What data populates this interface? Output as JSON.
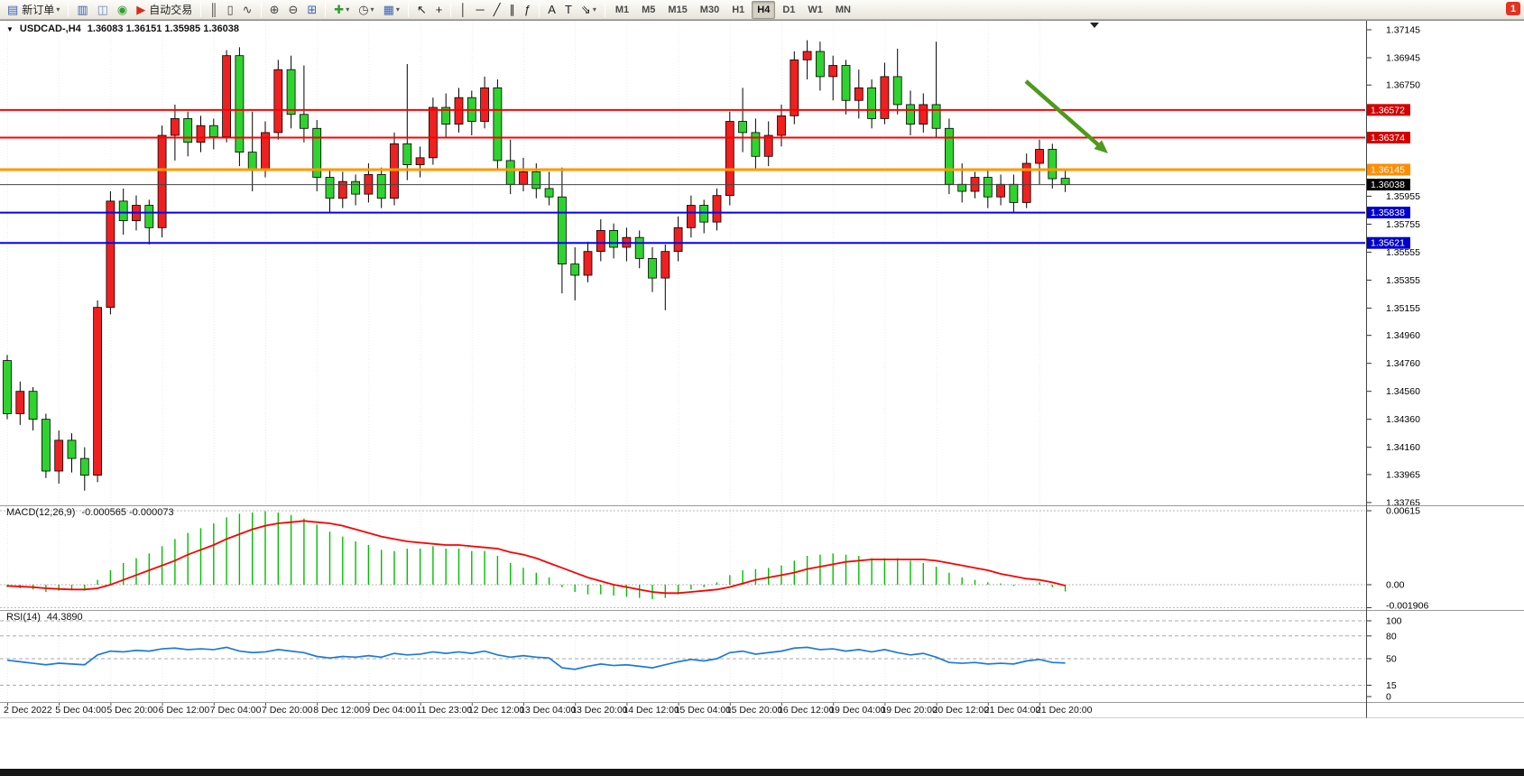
{
  "window": {
    "badge": "1"
  },
  "toolbar": {
    "caret_glyph": "▾",
    "buttons": [
      {
        "name": "new-order-button",
        "glyph": "▤",
        "color": "#3a63b8",
        "label": "新订单",
        "caret": true
      },
      {
        "name": "sep"
      },
      {
        "name": "charts-button",
        "glyph": "▥",
        "color": "#3a63b8"
      },
      {
        "name": "profiles-button",
        "glyph": "◫",
        "color": "#6b8cc8"
      },
      {
        "name": "data-window-button",
        "glyph": "◉",
        "color": "#2f9e2f"
      },
      {
        "name": "autotrading-button",
        "glyph": "▶",
        "color": "#d03020",
        "label": "自动交易"
      },
      {
        "name": "sep"
      },
      {
        "name": "bar-chart-button",
        "glyph": "║",
        "color": "#444"
      },
      {
        "name": "candle-chart-button",
        "glyph": "▯",
        "color": "#444"
      },
      {
        "name": "line-chart-button",
        "glyph": "∿",
        "color": "#444"
      },
      {
        "name": "sep"
      },
      {
        "name": "zoom-in-button",
        "glyph": "⊕",
        "color": "#444"
      },
      {
        "name": "zoom-out-button",
        "glyph": "⊖",
        "color": "#444"
      },
      {
        "name": "tile-windows-button",
        "glyph": "⊞",
        "color": "#3a63b8"
      },
      {
        "name": "sep"
      },
      {
        "name": "indicators-button",
        "glyph": "✚",
        "color": "#2f9e2f",
        "caret": true
      },
      {
        "name": "periods-button",
        "glyph": "◷",
        "color": "#444",
        "caret": true
      },
      {
        "name": "templates-button",
        "glyph": "▦",
        "color": "#3a63b8",
        "caret": true
      },
      {
        "name": "sep"
      },
      {
        "name": "cursor-button",
        "glyph": "↖",
        "color": "#222"
      },
      {
        "name": "crosshair-button",
        "glyph": "+",
        "color": "#222"
      },
      {
        "name": "sep"
      },
      {
        "name": "vline-button",
        "glyph": "│",
        "color": "#222"
      },
      {
        "name": "hline-button",
        "glyph": "─",
        "color": "#222"
      },
      {
        "name": "trendline-button",
        "glyph": "╱",
        "color": "#222"
      },
      {
        "name": "channel-button",
        "glyph": "∥",
        "color": "#222"
      },
      {
        "name": "fibonacci-button",
        "glyph": "ƒ",
        "color": "#222"
      },
      {
        "name": "sep"
      },
      {
        "name": "text-button",
        "glyph": "A",
        "color": "#222"
      },
      {
        "name": "label-button",
        "glyph": "T",
        "color": "#222"
      },
      {
        "name": "arrows-button",
        "glyph": "⇘",
        "color": "#222",
        "caret": true
      },
      {
        "name": "sep"
      }
    ],
    "timeframes": [
      "M1",
      "M5",
      "M15",
      "M30",
      "H1",
      "H4",
      "D1",
      "W1",
      "MN"
    ],
    "active_timeframe": "H4"
  },
  "chart": {
    "icons": {
      "dropdown": "▼"
    },
    "title": "USDCAD-,H4",
    "ohlc_display": "1.36083 1.36151 1.35985 1.36038",
    "axis_prices_plain": [
      "1.37145",
      "1.36945",
      "1.36750",
      "1.35955",
      "1.35755",
      "1.35555",
      "1.35355",
      "1.35155",
      "1.34960",
      "1.34760",
      "1.34560",
      "1.34360",
      "1.34160",
      "1.33965",
      "1.33765"
    ],
    "price_boxes": [
      {
        "label": "1.36572",
        "color": "#d40000"
      },
      {
        "label": "1.36374",
        "color": "#d40000"
      },
      {
        "label": "1.36145",
        "color": "#ff8c00"
      },
      {
        "label": "1.36038",
        "color": "#000000"
      },
      {
        "label": "1.35838",
        "color": "#0000cd"
      },
      {
        "label": "1.35621",
        "color": "#0000cd"
      }
    ],
    "hlines": [
      {
        "price": 1.36572,
        "color": "#ff0000",
        "width": 2
      },
      {
        "price": 1.36374,
        "color": "#ff0000",
        "width": 2
      },
      {
        "price": 1.36145,
        "color": "#ff9900",
        "width": 3
      },
      {
        "price": 1.36038,
        "color": "#444444",
        "width": 1
      },
      {
        "price": 1.35838,
        "color": "#0000ff",
        "width": 2
      },
      {
        "price": 1.35621,
        "color": "#0000ff",
        "width": 2
      }
    ],
    "time_labels": [
      "2 Dec 2022",
      "5 Dec 04:00",
      "5 Dec 20:00",
      "6 Dec 12:00",
      "7 Dec 04:00",
      "7 Dec 20:00",
      "8 Dec 12:00",
      "9 Dec 04:00",
      "11 Dec 23:00",
      "12 Dec 12:00",
      "13 Dec 04:00",
      "13 Dec 20:00",
      "14 Dec 12:00",
      "15 Dec 04:00",
      "15 Dec 20:00",
      "16 Dec 12:00",
      "19 Dec 04:00",
      "19 Dec 20:00",
      "20 Dec 12:00",
      "21 Dec 04:00",
      "21 Dec 20:00"
    ]
  },
  "macd": {
    "label": "MACD(12,26,9)",
    "values_display": "-0.000565 -0.000073",
    "axis": [
      "0.00615",
      "0.00",
      "-0.001906"
    ]
  },
  "rsi": {
    "label": "RSI(14)",
    "value_display": "44.3890",
    "axis": [
      "100",
      "80",
      "50",
      "15",
      "0"
    ],
    "levels": [
      100,
      80,
      50,
      15
    ]
  },
  "chart_data": {
    "type": "candlestick",
    "symbol": "USDCAD",
    "timeframe": "H4",
    "bull_color": "#ef2020",
    "bear_color": "#2fd32f",
    "candles": [
      [
        1.3478,
        1.3482,
        1.3436,
        1.344
      ],
      [
        1.344,
        1.3463,
        1.3432,
        1.3456
      ],
      [
        1.3456,
        1.3459,
        1.3428,
        1.3436
      ],
      [
        1.3436,
        1.344,
        1.3394,
        1.3399
      ],
      [
        1.3399,
        1.3428,
        1.339,
        1.3421
      ],
      [
        1.3421,
        1.3426,
        1.3398,
        1.3408
      ],
      [
        1.3408,
        1.3416,
        1.3385,
        1.3396
      ],
      [
        1.3396,
        1.3521,
        1.3391,
        1.3516
      ],
      [
        1.3516,
        1.3599,
        1.3511,
        1.3592
      ],
      [
        1.3592,
        1.3601,
        1.3568,
        1.3578
      ],
      [
        1.3578,
        1.3596,
        1.3571,
        1.3589
      ],
      [
        1.3589,
        1.3593,
        1.3561,
        1.3573
      ],
      [
        1.3573,
        1.3646,
        1.3566,
        1.3639
      ],
      [
        1.3639,
        1.3661,
        1.3621,
        1.3651
      ],
      [
        1.3651,
        1.3656,
        1.3624,
        1.3634
      ],
      [
        1.3634,
        1.3653,
        1.3627,
        1.3646
      ],
      [
        1.3646,
        1.3651,
        1.3629,
        1.3638
      ],
      [
        1.3638,
        1.37,
        1.3634,
        1.3696
      ],
      [
        1.3696,
        1.3702,
        1.3617,
        1.3627
      ],
      [
        1.3627,
        1.3656,
        1.3599,
        1.3614
      ],
      [
        1.3614,
        1.3649,
        1.3609,
        1.3641
      ],
      [
        1.3641,
        1.3693,
        1.3636,
        1.3686
      ],
      [
        1.3686,
        1.3696,
        1.3644,
        1.3654
      ],
      [
        1.3654,
        1.3689,
        1.3634,
        1.3644
      ],
      [
        1.3644,
        1.365,
        1.3599,
        1.3609
      ],
      [
        1.3609,
        1.3615,
        1.3584,
        1.3594
      ],
      [
        1.3594,
        1.3613,
        1.3587,
        1.3606
      ],
      [
        1.3606,
        1.3611,
        1.3589,
        1.3597
      ],
      [
        1.3597,
        1.3619,
        1.3591,
        1.3611
      ],
      [
        1.3611,
        1.3616,
        1.3587,
        1.3594
      ],
      [
        1.3594,
        1.3641,
        1.3589,
        1.3633
      ],
      [
        1.3633,
        1.369,
        1.3607,
        1.3618
      ],
      [
        1.3618,
        1.3631,
        1.3609,
        1.3623
      ],
      [
        1.3623,
        1.3666,
        1.3618,
        1.3659
      ],
      [
        1.3659,
        1.3669,
        1.3637,
        1.3647
      ],
      [
        1.3647,
        1.3673,
        1.3641,
        1.3666
      ],
      [
        1.3666,
        1.3671,
        1.3639,
        1.3649
      ],
      [
        1.3649,
        1.3681,
        1.3644,
        1.3673
      ],
      [
        1.3673,
        1.3679,
        1.3614,
        1.3621
      ],
      [
        1.3621,
        1.3636,
        1.3597,
        1.3604
      ],
      [
        1.3604,
        1.3623,
        1.3599,
        1.3613
      ],
      [
        1.3613,
        1.3619,
        1.3594,
        1.3601
      ],
      [
        1.3601,
        1.3613,
        1.3589,
        1.3595
      ],
      [
        1.3595,
        1.3616,
        1.3526,
        1.3547
      ],
      [
        1.3547,
        1.3559,
        1.3521,
        1.3539
      ],
      [
        1.3539,
        1.3563,
        1.3534,
        1.3556
      ],
      [
        1.3556,
        1.3579,
        1.3549,
        1.3571
      ],
      [
        1.3571,
        1.3576,
        1.3551,
        1.3559
      ],
      [
        1.3559,
        1.3573,
        1.3549,
        1.3566
      ],
      [
        1.3566,
        1.3571,
        1.3544,
        1.3551
      ],
      [
        1.3551,
        1.3559,
        1.3527,
        1.3537
      ],
      [
        1.3537,
        1.3561,
        1.3514,
        1.3556
      ],
      [
        1.3556,
        1.3581,
        1.3549,
        1.3573
      ],
      [
        1.3573,
        1.3596,
        1.3566,
        1.3589
      ],
      [
        1.3589,
        1.3593,
        1.3569,
        1.3577
      ],
      [
        1.3577,
        1.3601,
        1.3571,
        1.3596
      ],
      [
        1.3596,
        1.3656,
        1.3589,
        1.3649
      ],
      [
        1.3649,
        1.3673,
        1.3627,
        1.3641
      ],
      [
        1.3641,
        1.3651,
        1.3614,
        1.3624
      ],
      [
        1.3624,
        1.3649,
        1.3617,
        1.3639
      ],
      [
        1.3639,
        1.3661,
        1.3631,
        1.3653
      ],
      [
        1.3653,
        1.3699,
        1.3647,
        1.3693
      ],
      [
        1.3693,
        1.3707,
        1.3679,
        1.3699
      ],
      [
        1.3699,
        1.3706,
        1.3671,
        1.3681
      ],
      [
        1.3681,
        1.3696,
        1.3664,
        1.3689
      ],
      [
        1.3689,
        1.3693,
        1.3654,
        1.3664
      ],
      [
        1.3664,
        1.3686,
        1.3651,
        1.3673
      ],
      [
        1.3673,
        1.3679,
        1.3644,
        1.3651
      ],
      [
        1.3651,
        1.3691,
        1.3647,
        1.3681
      ],
      [
        1.3681,
        1.3701,
        1.3654,
        1.3661
      ],
      [
        1.3661,
        1.3671,
        1.3639,
        1.3647
      ],
      [
        1.3647,
        1.3669,
        1.3641,
        1.3661
      ],
      [
        1.3661,
        1.3706,
        1.3637,
        1.3644
      ],
      [
        1.3644,
        1.3651,
        1.3597,
        1.3604
      ],
      [
        1.3604,
        1.3619,
        1.3591,
        1.3599
      ],
      [
        1.3599,
        1.3613,
        1.3594,
        1.3609
      ],
      [
        1.3609,
        1.3615,
        1.3587,
        1.3595
      ],
      [
        1.3595,
        1.3611,
        1.3589,
        1.3604
      ],
      [
        1.3604,
        1.3611,
        1.3584,
        1.3591
      ],
      [
        1.3591,
        1.3626,
        1.3587,
        1.3619
      ],
      [
        1.3619,
        1.3636,
        1.3604,
        1.3629
      ],
      [
        1.3629,
        1.3633,
        1.3601,
        1.3608
      ],
      [
        1.36083,
        1.36151,
        1.35985,
        1.36038
      ]
    ],
    "macd_histogram": [
      -0.0002,
      -0.0003,
      -0.0004,
      -0.0006,
      -0.0005,
      -0.0004,
      -0.0005,
      0.0004,
      0.0012,
      0.0018,
      0.0022,
      0.0026,
      0.0032,
      0.0038,
      0.0043,
      0.0047,
      0.0051,
      0.0056,
      0.0059,
      0.006,
      0.0061,
      0.006,
      0.0058,
      0.0055,
      0.005,
      0.0044,
      0.004,
      0.0036,
      0.0033,
      0.0029,
      0.0028,
      0.003,
      0.003,
      0.0032,
      0.003,
      0.003,
      0.0028,
      0.0028,
      0.0024,
      0.0018,
      0.0014,
      0.001,
      0.0006,
      -0.0002,
      -0.0006,
      -0.0008,
      -0.0008,
      -0.0009,
      -0.001,
      -0.0011,
      -0.0012,
      -0.0011,
      -0.0008,
      -0.0004,
      -0.0002,
      0.0002,
      0.0008,
      0.0012,
      0.0013,
      0.0014,
      0.0016,
      0.002,
      0.0024,
      0.0025,
      0.0026,
      0.0025,
      0.0024,
      0.0022,
      0.0022,
      0.0022,
      0.002,
      0.0018,
      0.0015,
      0.001,
      0.0006,
      0.0004,
      0.0002,
      0.0001,
      -0.0001,
      0.0,
      0.0002,
      -0.0002,
      -0.000565
    ],
    "macd_signal": [
      -0.0001,
      -0.00015,
      -0.0002,
      -0.0003,
      -0.00035,
      -0.0004,
      -0.0004,
      -0.0003,
      0.0,
      0.0004,
      0.0008,
      0.0012,
      0.0016,
      0.002,
      0.0025,
      0.0029,
      0.0033,
      0.0038,
      0.0042,
      0.0046,
      0.0049,
      0.0051,
      0.0052,
      0.0053,
      0.0052,
      0.0051,
      0.0049,
      0.0046,
      0.0043,
      0.004,
      0.0038,
      0.0036,
      0.0035,
      0.0034,
      0.0033,
      0.0033,
      0.0032,
      0.0031,
      0.003,
      0.0027,
      0.0025,
      0.0022,
      0.0018,
      0.0014,
      0.001,
      0.0006,
      0.0003,
      0.0,
      -0.0002,
      -0.0004,
      -0.0006,
      -0.0007,
      -0.0007,
      -0.0006,
      -0.0005,
      -0.0004,
      -0.0002,
      0.0001,
      0.0004,
      0.0006,
      0.0008,
      0.001,
      0.0013,
      0.0015,
      0.0017,
      0.0019,
      0.002,
      0.0021,
      0.0021,
      0.0021,
      0.0021,
      0.0021,
      0.002,
      0.0018,
      0.0016,
      0.0014,
      0.0012,
      0.0009,
      0.0007,
      0.0005,
      0.0004,
      0.0002,
      -7.3e-05
    ],
    "rsi": [
      48,
      46,
      44,
      42,
      44,
      43,
      42,
      55,
      60,
      59,
      61,
      60,
      63,
      64,
      62,
      63,
      62,
      65,
      60,
      58,
      59,
      62,
      60,
      58,
      53,
      51,
      53,
      52,
      54,
      52,
      57,
      55,
      56,
      59,
      57,
      59,
      57,
      60,
      55,
      52,
      54,
      52,
      51,
      38,
      36,
      40,
      43,
      41,
      42,
      40,
      38,
      42,
      46,
      49,
      47,
      50,
      58,
      60,
      56,
      58,
      60,
      64,
      65,
      62,
      63,
      60,
      62,
      59,
      62,
      58,
      55,
      57,
      52,
      45,
      44,
      45,
      43,
      44,
      43,
      47,
      49,
      45,
      44.389
    ],
    "annotations": [
      {
        "type": "arrow",
        "from": [
          1137,
          90
        ],
        "to": [
          1228,
          170
        ],
        "color": "#4e9a1e"
      }
    ]
  }
}
